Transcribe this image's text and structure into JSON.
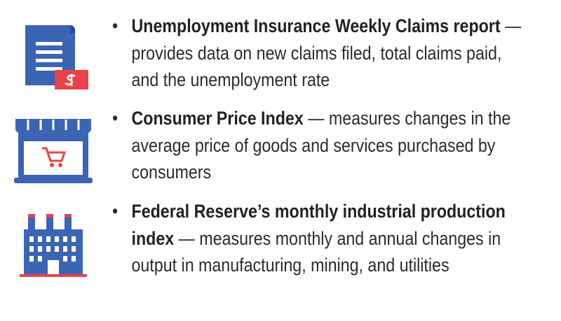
{
  "items": [
    {
      "title": "Unemployment Insurance Weekly Claims report",
      "description": "— provides data on new claims filed, total claims paid, and the unemployment rate"
    },
    {
      "title": "Consumer Price Index",
      "description": "— measures changes in the average price of goods and services purchased by consumers"
    },
    {
      "title": "Federal Reserve’s monthly industrial production index",
      "description": "— measures monthly and annual changes in output in manufacturing, mining, and utilities"
    }
  ]
}
